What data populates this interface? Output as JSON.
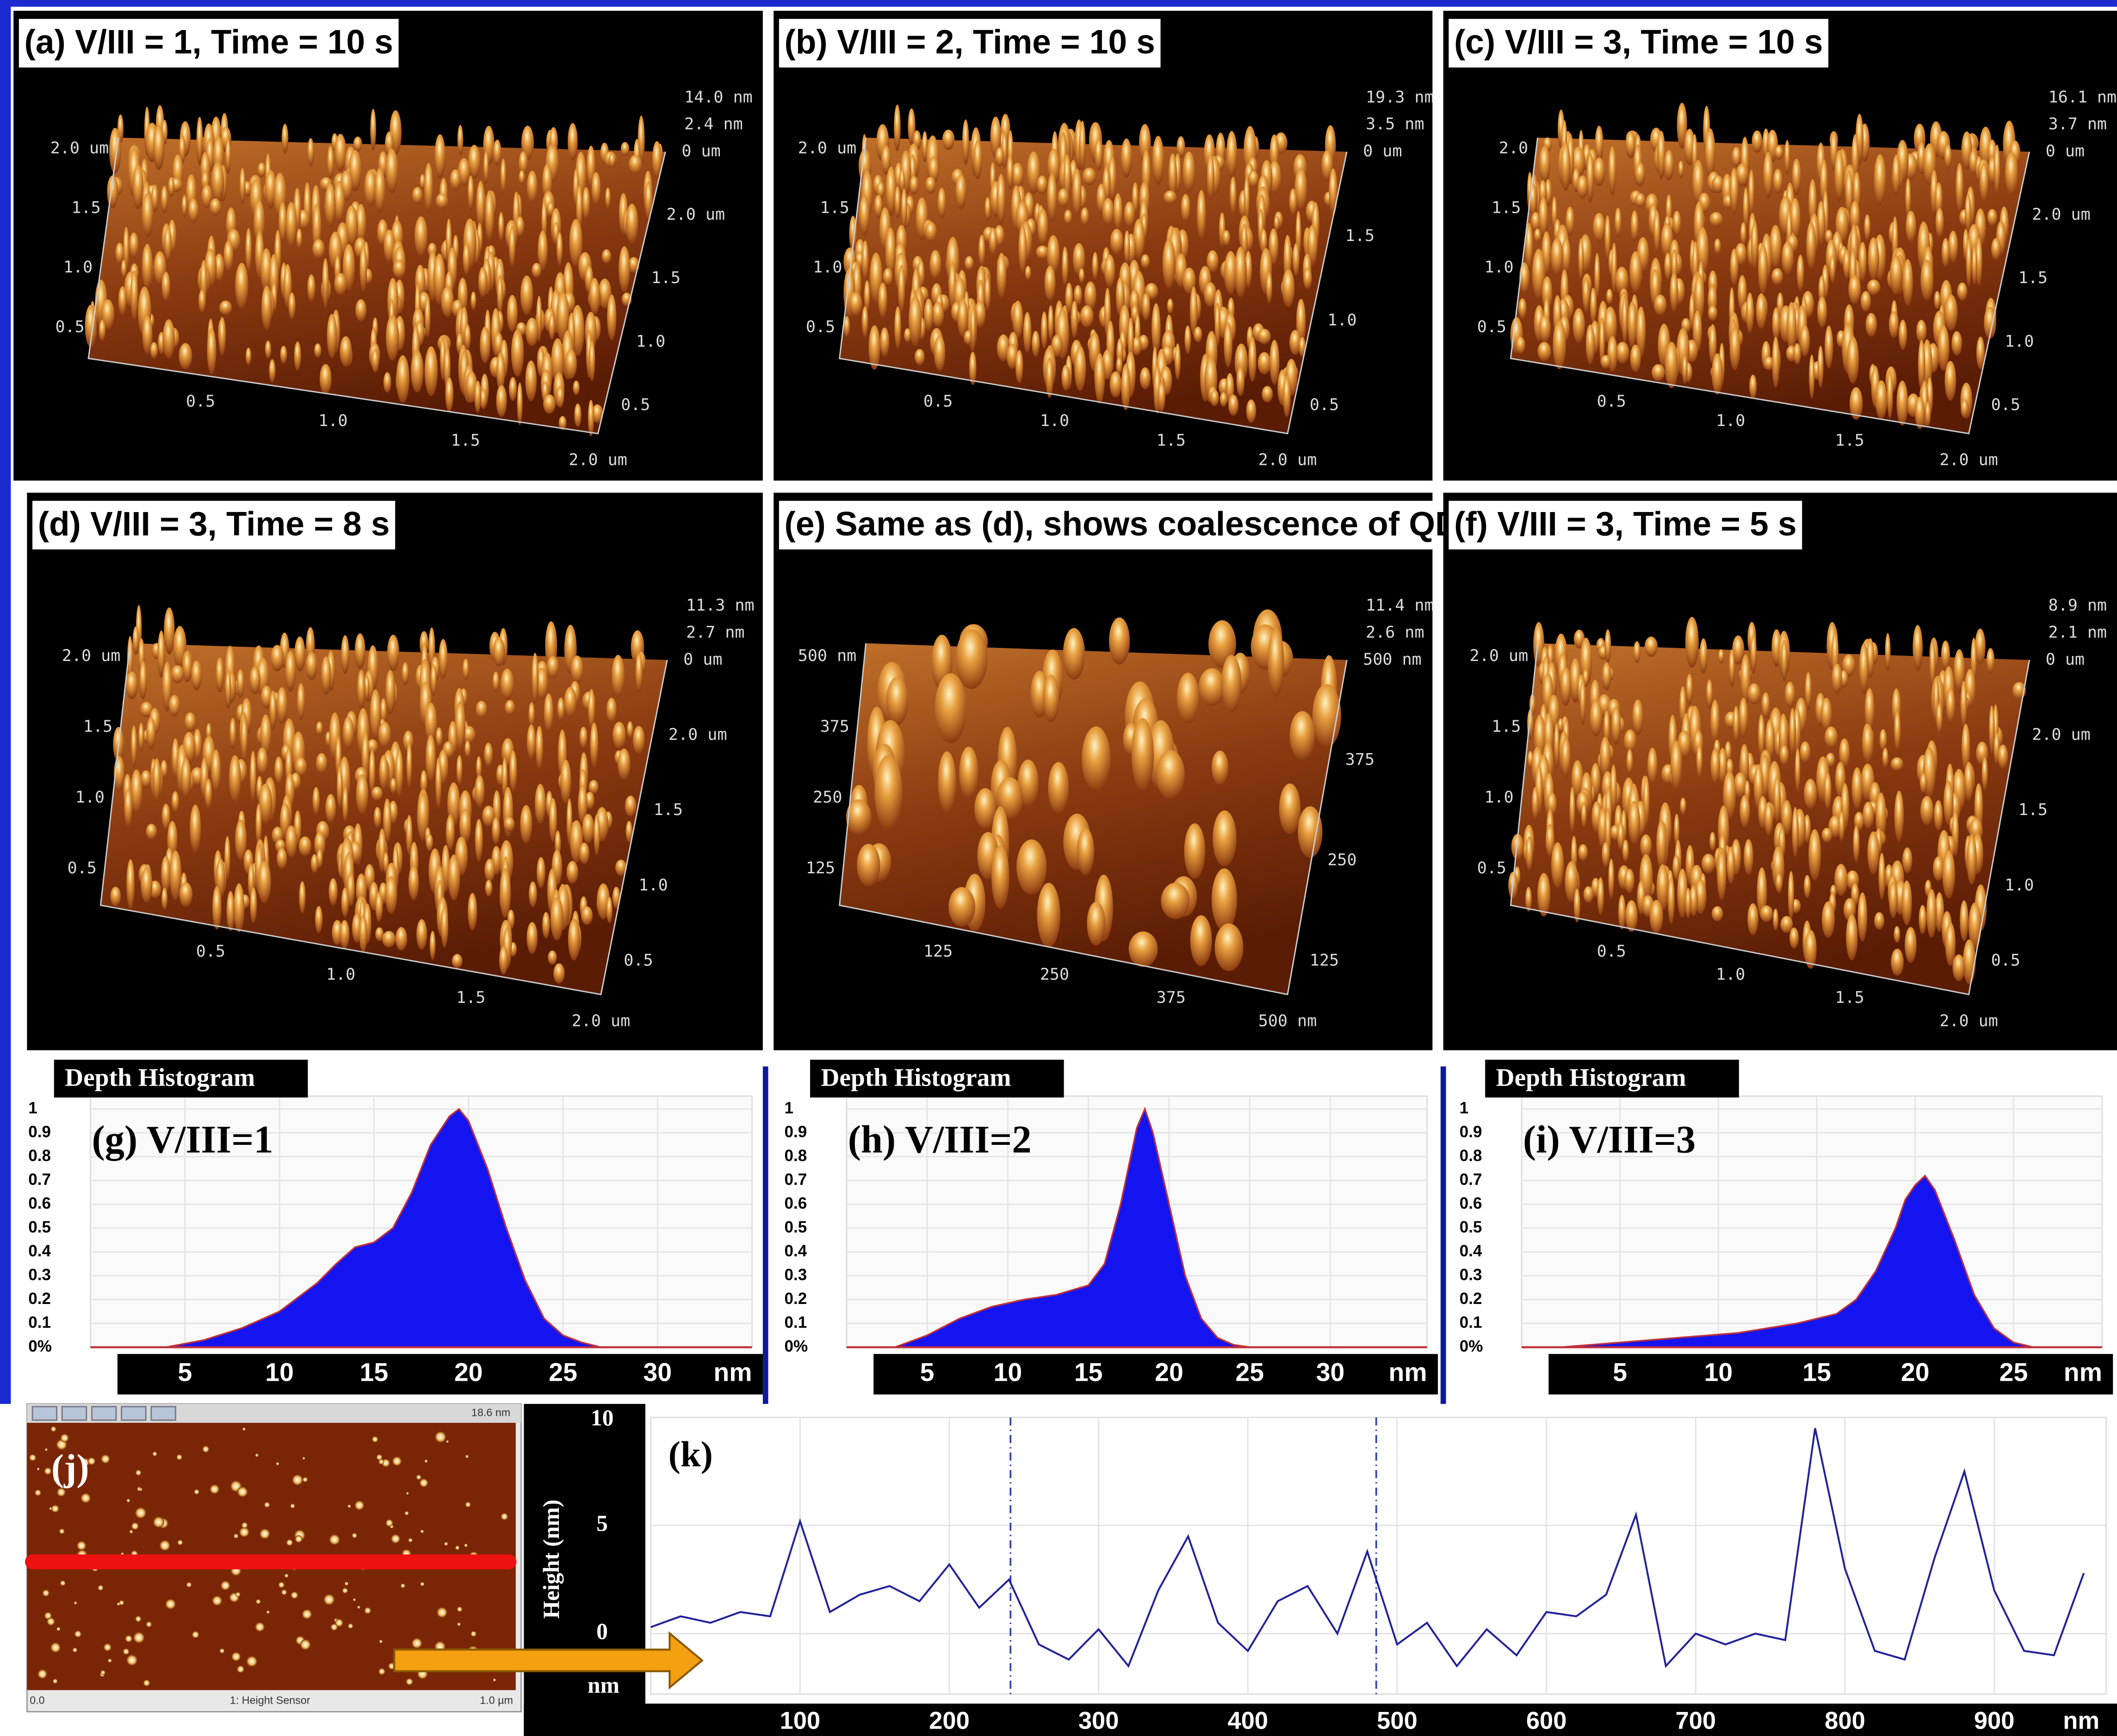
{
  "panels": [
    {
      "title": "(a) V/III = 1, Time = 10 s",
      "zlabels": [
        "14.0 nm",
        "2.4 nm"
      ],
      "left": [
        "2.0 um",
        "1.5",
        "1.0",
        "0.5"
      ],
      "right": [
        "0 um",
        "2.0 um",
        "1.5",
        "1.0",
        "0.5"
      ],
      "bottom": [
        "0.5",
        "1.0",
        "1.5",
        "2.0 um"
      ]
    },
    {
      "title": "(b) V/III = 2, Time = 10 s",
      "zlabels": [
        "19.3 nm",
        "3.5 nm"
      ],
      "left": [
        "2.0 um",
        "1.5",
        "1.0",
        "0.5"
      ],
      "right": [
        "0 um",
        "1.5",
        "1.0",
        "0.5"
      ],
      "bottom": [
        "0.5",
        "1.0",
        "1.5",
        "2.0 um"
      ]
    },
    {
      "title": "(c) V/III = 3, Time = 10 s",
      "zlabels": [
        "16.1 nm",
        "3.7 nm"
      ],
      "left": [
        "2.0",
        "1.5",
        "1.0",
        "0.5"
      ],
      "right": [
        "0 um",
        "2.0 um",
        "1.5",
        "1.0",
        "0.5"
      ],
      "bottom": [
        "0.5",
        "1.0",
        "1.5",
        "2.0 um"
      ]
    },
    {
      "title": "(d) V/III = 3, Time = 8 s",
      "zlabels": [
        "11.3 nm",
        "2.7 nm"
      ],
      "left": [
        "2.0 um",
        "1.5",
        "1.0",
        "0.5"
      ],
      "right": [
        "0 um",
        "2.0 um",
        "1.5",
        "1.0",
        "0.5"
      ],
      "bottom": [
        "0.5",
        "1.0",
        "1.5",
        "2.0 um"
      ]
    },
    {
      "title": "(e) Same as (d), shows coalescence of QDs",
      "zlabels": [
        "11.4 nm",
        "2.6 nm"
      ],
      "left": [
        "500 nm",
        "375",
        "250",
        "125"
      ],
      "right": [
        "500 nm",
        "375",
        "250",
        "125"
      ],
      "bottom": [
        "125",
        "250",
        "375",
        "500 nm"
      ]
    },
    {
      "title": "(f) V/III = 3, Time = 5 s",
      "zlabels": [
        "8.9 nm",
        "2.1 nm"
      ],
      "left": [
        "2.0 um",
        "1.5",
        "1.0",
        "0.5"
      ],
      "right": [
        "0 um",
        "2.0 um",
        "1.5",
        "1.0",
        "0.5"
      ],
      "bottom": [
        "0.5",
        "1.0",
        "1.5",
        "2.0 um"
      ]
    }
  ],
  "chart_data": [
    {
      "type": "area",
      "header": "Depth Histogram",
      "title": "(g) V/III=1",
      "x_unit": "nm",
      "color": "#1414f0",
      "x": [
        4,
        6,
        8,
        10,
        12,
        13,
        14,
        15,
        16,
        17,
        18,
        19,
        19.5,
        20,
        21,
        22,
        23,
        24,
        25,
        26,
        27
      ],
      "values": [
        0,
        0.03,
        0.08,
        0.15,
        0.27,
        0.35,
        0.42,
        0.44,
        0.5,
        0.65,
        0.85,
        0.97,
        1.0,
        0.95,
        0.75,
        0.5,
        0.28,
        0.12,
        0.05,
        0.02,
        0
      ],
      "xlim": [
        0,
        35
      ],
      "xticks": [
        5,
        10,
        15,
        20,
        25,
        30
      ],
      "ylim": [
        0,
        1.02
      ],
      "yticks": [
        1,
        0.9,
        0.8,
        0.7,
        0.6,
        0.5,
        0.4,
        0.3,
        0.2,
        0.1,
        {
          "value": 0,
          "label": "0%"
        }
      ],
      "grid": true
    },
    {
      "type": "area",
      "header": "Depth Histogram",
      "title": "(h) V/III=2",
      "x_unit": "nm",
      "color": "#1414f0",
      "x": [
        3,
        5,
        7,
        9,
        11,
        13,
        15,
        16,
        17,
        18,
        18.5,
        19,
        20,
        21,
        22,
        23,
        24,
        25
      ],
      "values": [
        0,
        0.05,
        0.12,
        0.17,
        0.2,
        0.22,
        0.26,
        0.35,
        0.6,
        0.92,
        1.0,
        0.9,
        0.6,
        0.3,
        0.12,
        0.04,
        0.01,
        0
      ],
      "xlim": [
        0,
        36
      ],
      "xticks": [
        5,
        10,
        15,
        20,
        25,
        30
      ],
      "ylim": [
        0,
        1.02
      ],
      "yticks": [
        1,
        0.9,
        0.8,
        0.7,
        0.6,
        0.5,
        0.4,
        0.3,
        0.2,
        0.1,
        {
          "value": 0,
          "label": "0%"
        }
      ],
      "grid": true
    },
    {
      "type": "area",
      "header": "Depth Histogram",
      "title": "(i) V/III=3",
      "x_unit": "nm",
      "color": "#1414f0",
      "x": [
        2,
        5,
        8,
        11,
        14,
        16,
        17,
        18,
        19,
        19.5,
        20,
        20.5,
        21,
        22,
        23,
        24,
        25,
        26
      ],
      "values": [
        0,
        0.02,
        0.04,
        0.06,
        0.1,
        0.14,
        0.2,
        0.32,
        0.5,
        0.62,
        0.68,
        0.72,
        0.66,
        0.45,
        0.22,
        0.08,
        0.02,
        0
      ],
      "xlim": [
        0,
        29.5
      ],
      "xticks": [
        5,
        10,
        15,
        20,
        25
      ],
      "ylim": [
        0,
        1.02
      ],
      "yticks": [
        1,
        0.9,
        0.8,
        0.7,
        0.6,
        0.5,
        0.4,
        0.3,
        0.2,
        0.1,
        {
          "value": 0,
          "label": "0%"
        }
      ],
      "grid": true
    },
    {
      "type": "line",
      "title": "(k)",
      "y_label": "Height (nm)",
      "y_unit": "nm",
      "x_unit": "nm",
      "color": "#22229a",
      "x": [
        0,
        20,
        40,
        60,
        80,
        100,
        120,
        140,
        160,
        180,
        200,
        220,
        240,
        260,
        280,
        300,
        320,
        340,
        360,
        380,
        400,
        420,
        440,
        460,
        480,
        500,
        520,
        540,
        560,
        580,
        600,
        620,
        640,
        660,
        680,
        700,
        720,
        740,
        760,
        780,
        800,
        820,
        840,
        860,
        880,
        900,
        920,
        940,
        960
      ],
      "values": [
        0.3,
        0.8,
        0.5,
        1.0,
        0.8,
        5.2,
        1.0,
        1.8,
        2.2,
        1.5,
        3.2,
        1.2,
        2.5,
        -0.5,
        -1.2,
        0.2,
        -1.5,
        2.0,
        4.5,
        0.5,
        -0.8,
        1.5,
        2.2,
        0.0,
        3.8,
        -0.5,
        0.5,
        -1.5,
        0.2,
        -1.0,
        1.0,
        0.8,
        1.8,
        5.5,
        -1.5,
        0.0,
        -0.5,
        0.0,
        -0.3,
        9.5,
        3.0,
        -0.8,
        -1.2,
        3.5,
        7.5,
        2.0,
        -0.8,
        -1.0,
        2.8
      ],
      "xlim": [
        0,
        975
      ],
      "xticks": [
        100,
        200,
        300,
        400,
        500,
        600,
        700,
        800,
        900
      ],
      "ylim": [
        -2.8,
        10
      ],
      "yticks": [
        10,
        5,
        0
      ],
      "grid": true,
      "markers": [
        241,
        486
      ]
    }
  ],
  "afm_image": {
    "label": "(j)",
    "scale_max": "18.6 nm",
    "x_start": "0.0",
    "channel": "1: Height Sensor",
    "x_end": "1.0 µm"
  }
}
